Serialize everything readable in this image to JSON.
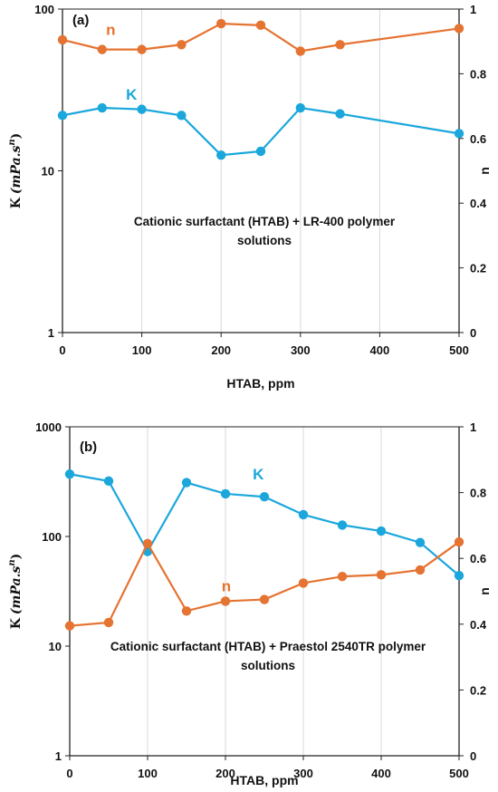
{
  "colors": {
    "K": "#1BA7DC",
    "n": "#E57331",
    "grid": "#D9D9D9",
    "axis": "#222222"
  },
  "chart_data": [
    {
      "type": "line",
      "panel_label": "(a)",
      "annotation": [
        "Cationic surfactant (HTAB) + LR-400 polymer",
        "solutions"
      ],
      "xlabel": "HTAB, ppm",
      "ylabel_left": {
        "prefix": "K",
        "suffix": "(mPa.s",
        "exp": "n",
        "close": ")"
      },
      "ylabel_right": "n",
      "x_ticks": [
        "0",
        "100",
        "200",
        "300",
        "400",
        "500"
      ],
      "xlim": [
        0,
        500
      ],
      "y_left_ticks": [
        "1",
        "10",
        "100"
      ],
      "y_left_lim": [
        1,
        100
      ],
      "y_left_scale": "log",
      "y_right_ticks": [
        "0",
        "0.2",
        "0.4",
        "0.6",
        "0.8",
        "1"
      ],
      "y_right_lim": [
        0,
        1
      ],
      "grid": "vertical",
      "series": [
        {
          "name": "K",
          "axis": "left",
          "x": [
            0,
            50,
            100,
            150,
            200,
            250,
            300,
            350,
            500
          ],
          "values": [
            22,
            24.5,
            24,
            22,
            12.5,
            13.2,
            24.5,
            22.5,
            17
          ]
        },
        {
          "name": "n",
          "axis": "right",
          "x": [
            0,
            50,
            100,
            150,
            200,
            250,
            300,
            350,
            500
          ],
          "values": [
            0.905,
            0.875,
            0.875,
            0.89,
            0.955,
            0.95,
            0.87,
            0.89,
            0.94
          ]
        }
      ],
      "series_label_pos": {
        "K": [
          80,
          0.72
        ],
        "n": [
          55,
          0.92
        ]
      }
    },
    {
      "type": "line",
      "panel_label": "(b)",
      "annotation": [
        "Cationic surfactant (HTAB) + Praestol 2540TR polymer",
        "solutions"
      ],
      "xlabel": "HTAB, ppm",
      "ylabel_left": {
        "prefix": "K",
        "suffix": "(mPa.s",
        "exp": "n",
        "close": ")"
      },
      "ylabel_right": "n",
      "x_ticks": [
        "0",
        "100",
        "200",
        "300",
        "400",
        "500"
      ],
      "xlim": [
        0,
        500
      ],
      "y_left_ticks": [
        "1",
        "10",
        "100",
        "1000"
      ],
      "y_left_lim": [
        1,
        1000
      ],
      "y_left_scale": "log",
      "y_right_ticks": [
        "0",
        "0.2",
        "0.4",
        "0.6",
        "0.8",
        "1"
      ],
      "y_right_lim": [
        0,
        1
      ],
      "grid": "vertical",
      "series": [
        {
          "name": "K",
          "axis": "left",
          "x": [
            0,
            50,
            100,
            150,
            200,
            250,
            300,
            350,
            400,
            450,
            500
          ],
          "values": [
            370,
            320,
            73,
            310,
            245,
            230,
            158,
            127,
            112,
            88,
            44
          ]
        },
        {
          "name": "n",
          "axis": "right",
          "x": [
            0,
            50,
            100,
            150,
            200,
            250,
            300,
            350,
            400,
            450,
            500
          ],
          "values": [
            0.395,
            0.405,
            0.645,
            0.44,
            0.47,
            0.475,
            0.525,
            0.545,
            0.55,
            0.565,
            0.65
          ]
        }
      ],
      "series_label_pos": {
        "K": [
          235,
          0.84
        ],
        "n": [
          195,
          0.5
        ]
      }
    }
  ]
}
